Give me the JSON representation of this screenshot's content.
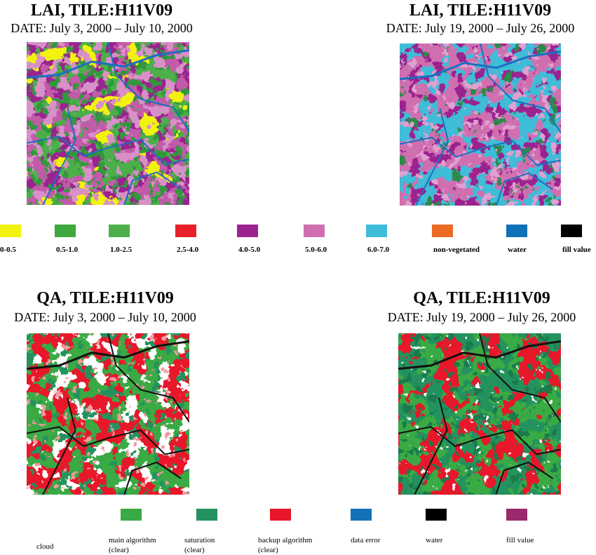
{
  "panels": [
    {
      "title": "LAI, TILE:H11V09",
      "date": "DATE: July 3, 2000 – July 10, 2000"
    },
    {
      "title": "LAI, TILE:H11V09",
      "date": "DATE: July 19, 2000 – July 26, 2000"
    },
    {
      "title": "QA, TILE:H11V09",
      "date": "DATE: July 3, 2000 – July 10, 2000"
    },
    {
      "title": "QA, TILE:H11V09",
      "date": "DATE: July 19, 2000 – July 26, 2000"
    }
  ],
  "lai_legend": [
    {
      "label": "0-0.5",
      "color": "#f2f20f"
    },
    {
      "label": "0.5-1.0",
      "color": "#3ea83e"
    },
    {
      "label": "1.0-2.5",
      "color": "#4caf4a"
    },
    {
      "label": "2.5-4.0",
      "color": "#e8202a"
    },
    {
      "label": "4.0-5.0",
      "color": "#9a238f"
    },
    {
      "label": "5.0-6.0",
      "color": "#d06fb0"
    },
    {
      "label": "6.0-7.0",
      "color": "#3fbcd8"
    },
    {
      "label": "non-vegetated",
      "color": "#ea6a26"
    },
    {
      "label": "water",
      "color": "#1070b8"
    },
    {
      "label": "fill value",
      "color": "#000000"
    }
  ],
  "qa_legend": [
    {
      "lines": [
        "cloud"
      ],
      "color": "#ffffff"
    },
    {
      "lines": [
        "main algorithm",
        "(clear)"
      ],
      "color": "#3aaa44"
    },
    {
      "lines": [
        "saturation",
        "(clear)"
      ],
      "color": "#23925e"
    },
    {
      "lines": [
        "backup algorithm",
        "(clear)"
      ],
      "color": "#e8172a"
    },
    {
      "lines": [
        "data error"
      ],
      "color": "#1472b6"
    },
    {
      "lines": [
        "water"
      ],
      "color": "#000000"
    },
    {
      "lines": [
        "fill value"
      ],
      "color": "#9a2a6c"
    }
  ]
}
